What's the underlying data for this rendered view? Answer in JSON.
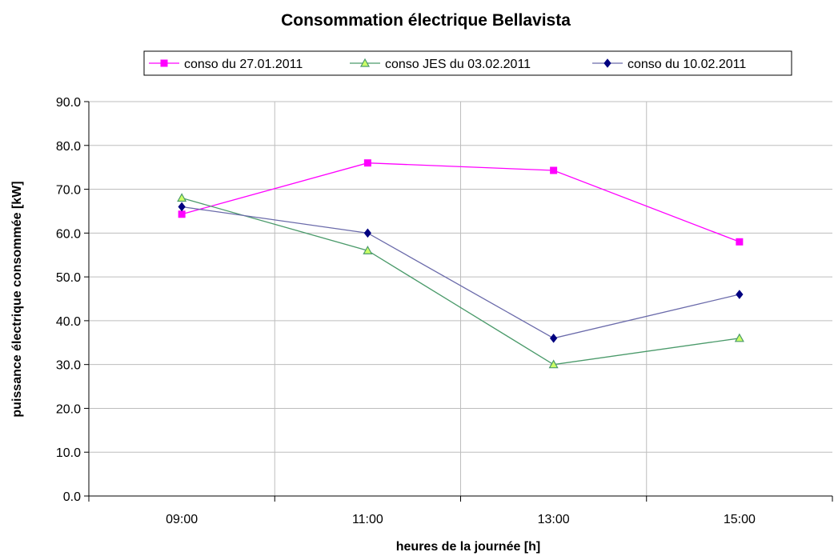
{
  "chart_data": {
    "type": "line",
    "title": "Consommation électrique Bellavista",
    "xlabel": "heures de la journée [h]",
    "ylabel": "puissance électrique consommée [kW]",
    "categories": [
      "09:00",
      "11:00",
      "13:00",
      "15:00"
    ],
    "ylim": [
      0,
      90
    ],
    "yticks": [
      "0.0",
      "10.0",
      "20.0",
      "30.0",
      "40.0",
      "50.0",
      "60.0",
      "70.0",
      "80.0",
      "90.0"
    ],
    "grid": true,
    "legend_position": "top",
    "series": [
      {
        "name": "conso du 27.01.2011",
        "values": [
          64.3,
          76.0,
          74.3,
          58.0
        ],
        "color": "#ff00ff",
        "marker": "square"
      },
      {
        "name": "conso JES du 03.02.2011",
        "values": [
          68.0,
          56.0,
          30.0,
          36.0
        ],
        "color": "#4a9a6a",
        "marker_fill": "#ccff66",
        "marker": "triangle"
      },
      {
        "name": "conso du 10.02.2011",
        "values": [
          66.0,
          60.0,
          36.0,
          46.0
        ],
        "color": "#6a6aaa",
        "marker_fill": "#000080",
        "marker": "diamond"
      }
    ]
  }
}
